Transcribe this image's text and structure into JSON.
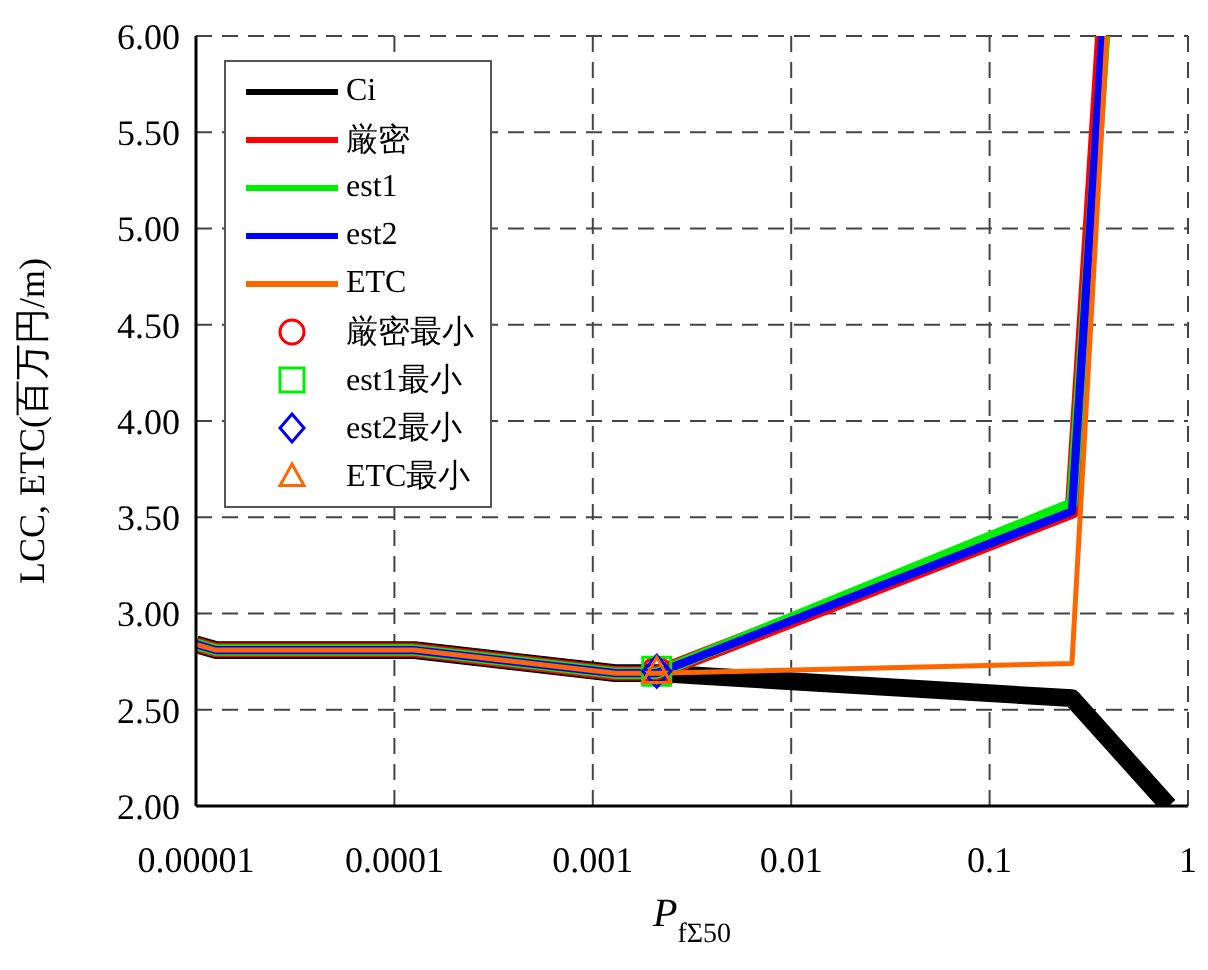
{
  "chart_data": {
    "type": "line",
    "xlabel": "P$_{fΣ50}$",
    "ylabel": "LCC, ETC(百万円/m)",
    "log": "x",
    "grid": true,
    "legend": "top left",
    "line_style": "solid",
    "marker": "none",
    "xlim": [
      1e-05,
      1
    ],
    "xticks": [
      {
        "value": 1e-05,
        "label": "0.00001"
      },
      {
        "value": 0.0001,
        "label": "0.0001"
      },
      {
        "value": 0.001,
        "label": "0.001"
      },
      {
        "value": 0.01,
        "label": "0.01"
      },
      {
        "value": 0.1,
        "label": "0.1"
      },
      {
        "value": 1,
        "label": "1"
      }
    ],
    "ylim": [
      2,
      6
    ],
    "yticks": [
      {
        "value": 2,
        "label": "2.00"
      },
      {
        "value": 2.5,
        "label": "2.50"
      },
      {
        "value": 3,
        "label": "3.00"
      },
      {
        "value": 3.5,
        "label": "3.50"
      },
      {
        "value": 4,
        "label": "4.00"
      },
      {
        "value": 4.5,
        "label": "4.50"
      },
      {
        "value": 5,
        "label": "5.00"
      },
      {
        "value": 5.5,
        "label": "5.50"
      },
      {
        "value": 6,
        "label": "6.00"
      }
    ],
    "series": [
      {
        "name": "Ci",
        "color": "#000000",
        "x": [
          1e-05,
          1.26e-05,
          0.000126,
          0.0013,
          0.0021,
          0.26,
          0.8
        ],
        "values": [
          2.84,
          2.81,
          2.81,
          2.69,
          2.69,
          2.56,
          2.0
        ]
      },
      {
        "name": "厳密",
        "color": "#ff0000",
        "x": [
          1e-05,
          1.26e-05,
          0.000126,
          0.0013,
          0.0021,
          0.26,
          0.37
        ],
        "values": [
          2.84,
          2.81,
          2.81,
          2.69,
          2.69,
          3.53,
          6.0
        ]
      },
      {
        "name": "est1",
        "color": "#00ee00",
        "x": [
          1e-05,
          1.26e-05,
          0.000126,
          0.0013,
          0.0021,
          0.26,
          0.38
        ],
        "values": [
          2.84,
          2.81,
          2.81,
          2.69,
          2.69,
          3.57,
          6.0
        ]
      },
      {
        "name": "est2",
        "color": "#0000ff",
        "x": [
          1e-05,
          1.26e-05,
          0.000126,
          0.0013,
          0.0021,
          0.26,
          0.37
        ],
        "values": [
          2.84,
          2.81,
          2.81,
          2.69,
          2.69,
          3.53,
          6.0
        ]
      },
      {
        "name": "ETC",
        "color": "#ff6600",
        "x": [
          1e-05,
          1.26e-05,
          0.000126,
          0.0013,
          0.0021,
          0.26,
          0.39
        ],
        "values": [
          2.84,
          2.81,
          2.81,
          2.69,
          2.69,
          2.74,
          6.0
        ]
      },
      {
        "name": "厳密最小",
        "type": "scatter",
        "marker": "circle",
        "color": "#ff0000",
        "x": [
          0.0021
        ],
        "values": [
          2.7
        ]
      },
      {
        "name": "est1最小",
        "type": "scatter",
        "marker": "square",
        "color": "#00ee00",
        "x": [
          0.0021
        ],
        "values": [
          2.7
        ]
      },
      {
        "name": "est2最小",
        "type": "scatter",
        "marker": "diamond",
        "color": "#0000ff",
        "x": [
          0.0021
        ],
        "values": [
          2.7
        ]
      },
      {
        "name": "ETC最小",
        "type": "scatter",
        "marker": "triangle",
        "color": "#ff6600",
        "x": [
          0.0021
        ],
        "values": [
          2.7
        ]
      }
    ]
  }
}
